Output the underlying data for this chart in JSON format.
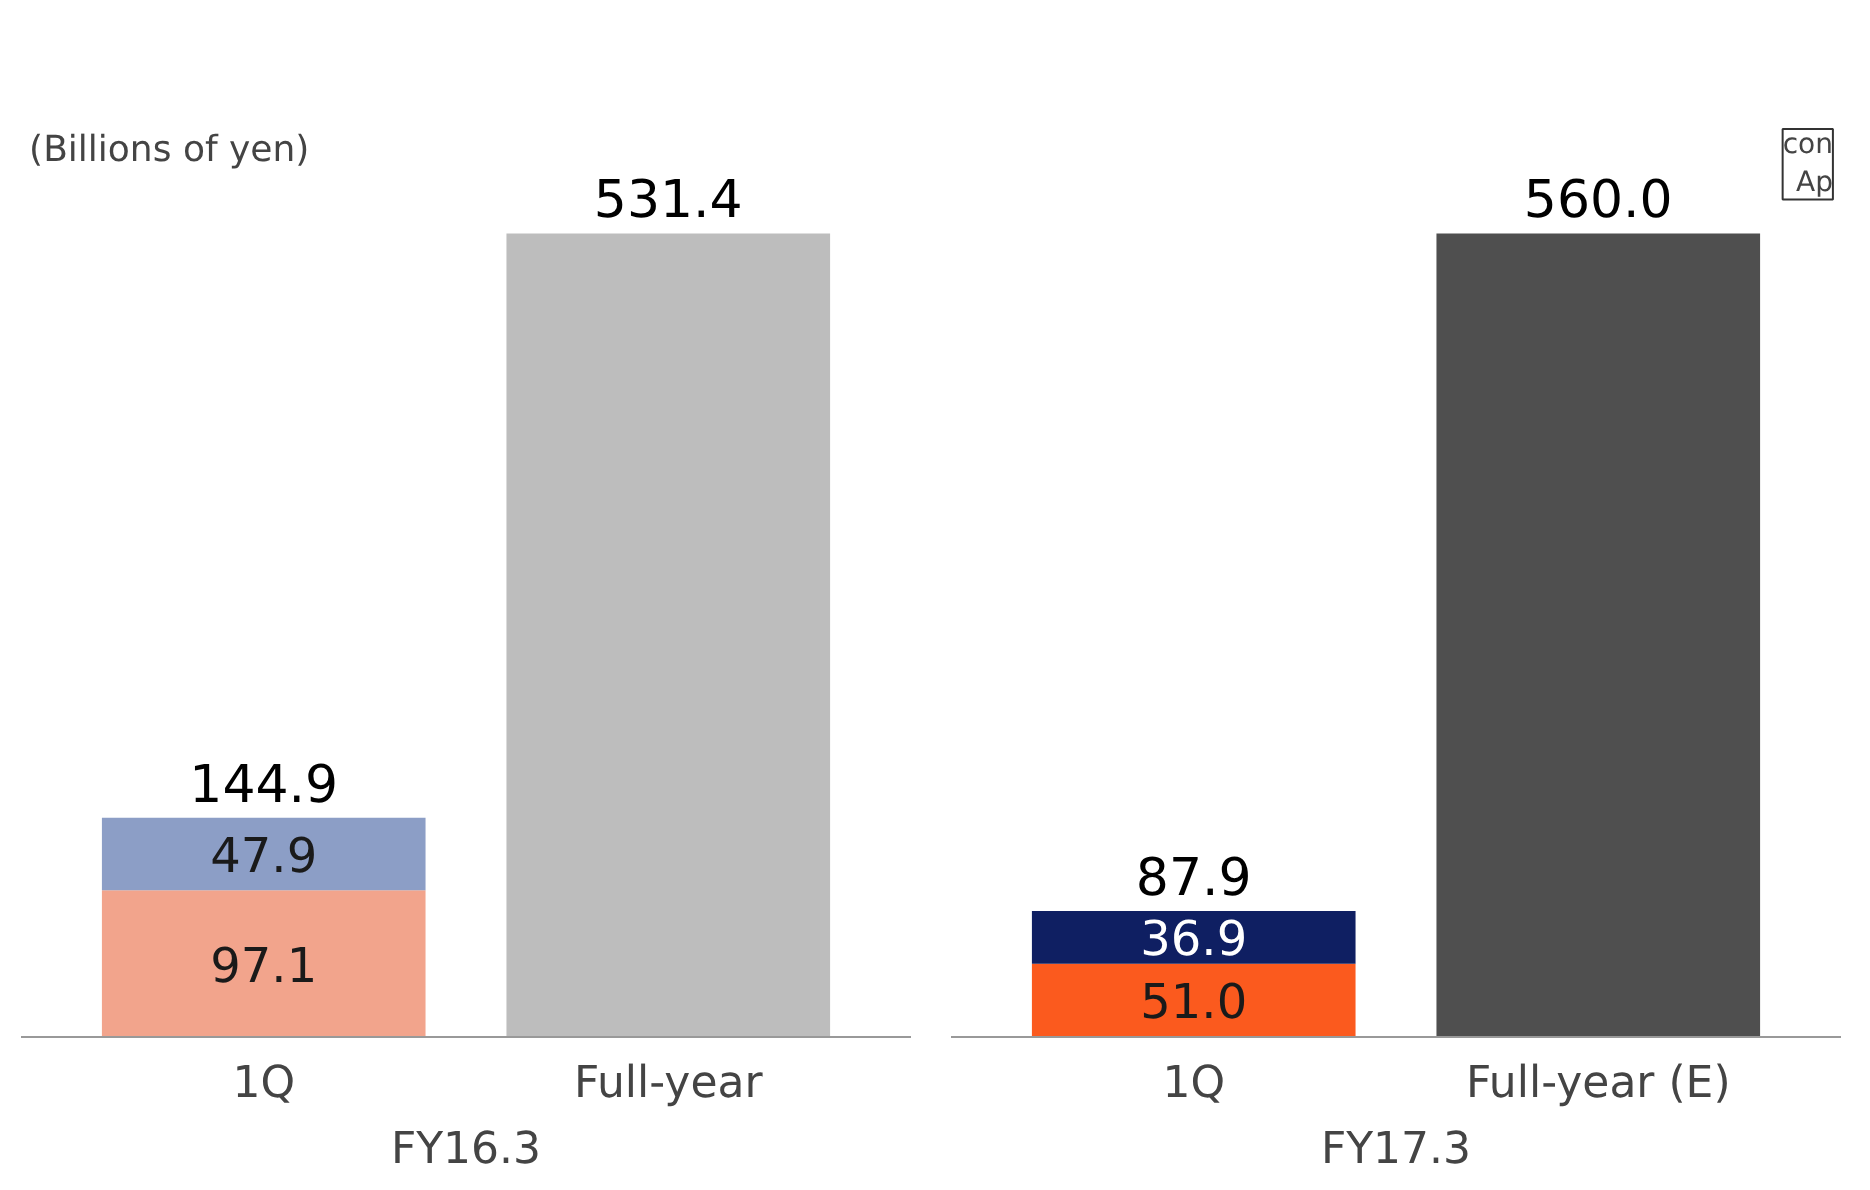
{
  "chart_data": [
    {
      "type": "bar",
      "stacked": true,
      "categories": [
        "1Q",
        "Full-year"
      ],
      "xlabel": "FY16.3",
      "annotations": [
        "(Billions of yen)"
      ],
      "series": [
        {
          "color": "#f2a48c",
          "values": [
            97.1,
            null
          ],
          "value_labels": [
            "97.1",
            null
          ]
        },
        {
          "color": "#8c9ec6",
          "values": [
            47.9,
            null
          ],
          "value_labels": [
            "47.9",
            null
          ]
        },
        {
          "color": "#bdbdbd",
          "values": [
            null,
            531.4
          ]
        }
      ],
      "totals": [
        "144.9",
        "531.4"
      ]
    },
    {
      "type": "bar",
      "stacked": true,
      "categories": [
        "1Q",
        "Full-year (E)"
      ],
      "xlabel": "FY17.3",
      "annotations": [
        "con\nAp"
      ],
      "series": [
        {
          "color": "#fb5a1e",
          "values": [
            51.0,
            null
          ],
          "value_labels": [
            "51.0",
            null
          ]
        },
        {
          "color": "#0f1f62",
          "values": [
            36.9,
            null
          ],
          "value_labels": [
            "36.9",
            null
          ]
        },
        {
          "color": "#4f4f4f",
          "values": [
            null,
            560.0
          ]
        }
      ],
      "totals": [
        "87.9",
        "560.0"
      ]
    }
  ]
}
